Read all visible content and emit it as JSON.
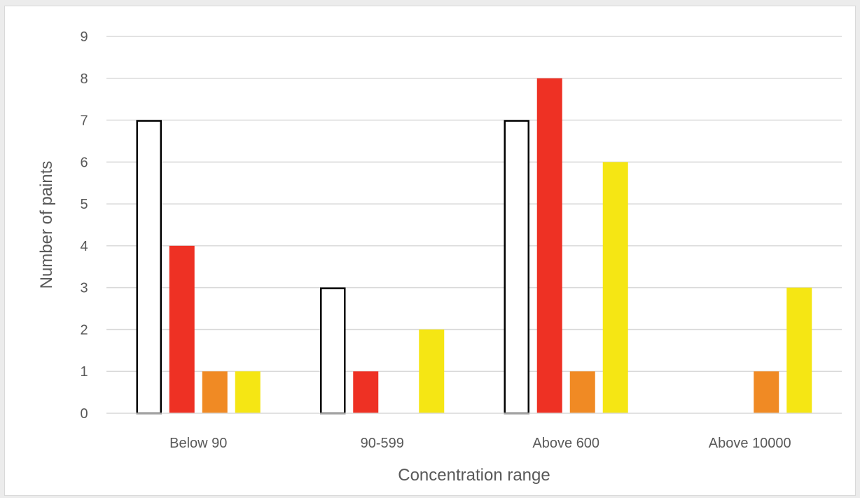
{
  "chart_data": {
    "type": "bar",
    "title": "",
    "xlabel": "Concentration range",
    "ylabel": "Number of paints",
    "categories": [
      "Below 90",
      "90-599",
      "Above 600",
      "Above 10000"
    ],
    "ylim": [
      0,
      9
    ],
    "yticks": [
      "0",
      "1",
      "2",
      "3",
      "4",
      "5",
      "6",
      "7",
      "8",
      "9"
    ],
    "grid": true,
    "legend": "none",
    "series": [
      {
        "color": "#ffffff",
        "stroke": "#000000",
        "values": [
          7,
          3,
          7,
          0
        ]
      },
      {
        "color": "#ee3124",
        "stroke": "none",
        "values": [
          4,
          1,
          8,
          0
        ]
      },
      {
        "color": "#f08a24",
        "stroke": "none",
        "values": [
          1,
          0,
          1,
          1
        ]
      },
      {
        "color": "#f5e614",
        "stroke": "none",
        "values": [
          1,
          2,
          6,
          3
        ]
      }
    ]
  }
}
